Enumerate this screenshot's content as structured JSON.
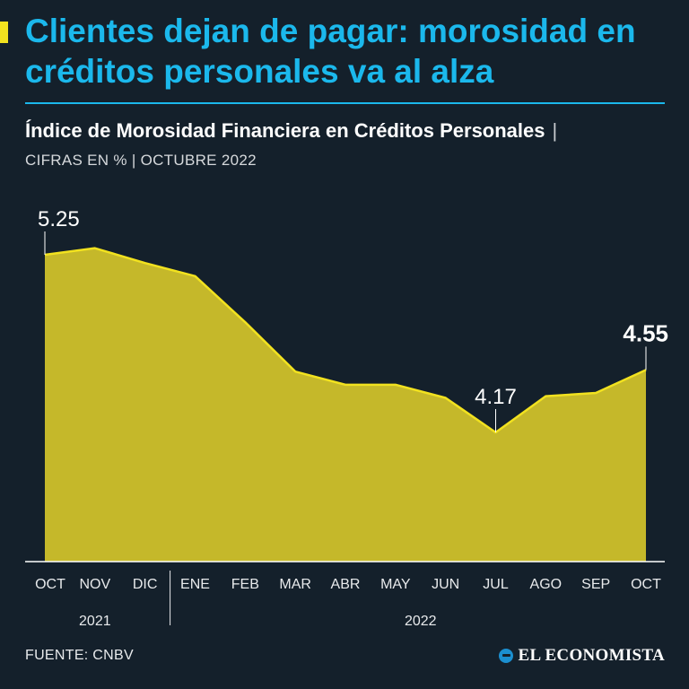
{
  "header": {
    "title": "Clientes dejan de pagar: morosidad en créditos personales va al alza",
    "subtitle": "Índice de Morosidad Financiera en Créditos Personales",
    "subtitle_separator": "|",
    "units_line": "CIFRAS EN % | OCTUBRE 2022"
  },
  "colors": {
    "background": "#14202b",
    "title": "#1bb8ec",
    "area_fill": "#c5b82a",
    "line": "#f2e21f",
    "accent": "#f2e21f"
  },
  "chart_data": {
    "type": "area",
    "categories": [
      "OCT",
      "NOV",
      "DIC",
      "ENE",
      "FEB",
      "MAR",
      "ABR",
      "MAY",
      "JUN",
      "JUL",
      "AGO",
      "SEP",
      "OCT"
    ],
    "years": [
      {
        "label": "2021",
        "span": [
          "OCT",
          "DIC"
        ]
      },
      {
        "label": "2022",
        "span": [
          "ENE",
          "OCT"
        ]
      }
    ],
    "values": [
      5.25,
      5.29,
      5.2,
      5.12,
      4.84,
      4.54,
      4.46,
      4.46,
      4.38,
      4.17,
      4.39,
      4.41,
      4.55
    ],
    "annotations": [
      {
        "index": 0,
        "text": "5.25",
        "bold": false
      },
      {
        "index": 9,
        "text": "4.17",
        "bold": false
      },
      {
        "index": 12,
        "text": "4.55",
        "bold": true
      }
    ],
    "grid": false
  },
  "footer": {
    "source": "FUENTE: CNBV",
    "brand": "EL ECONOMISTA"
  }
}
